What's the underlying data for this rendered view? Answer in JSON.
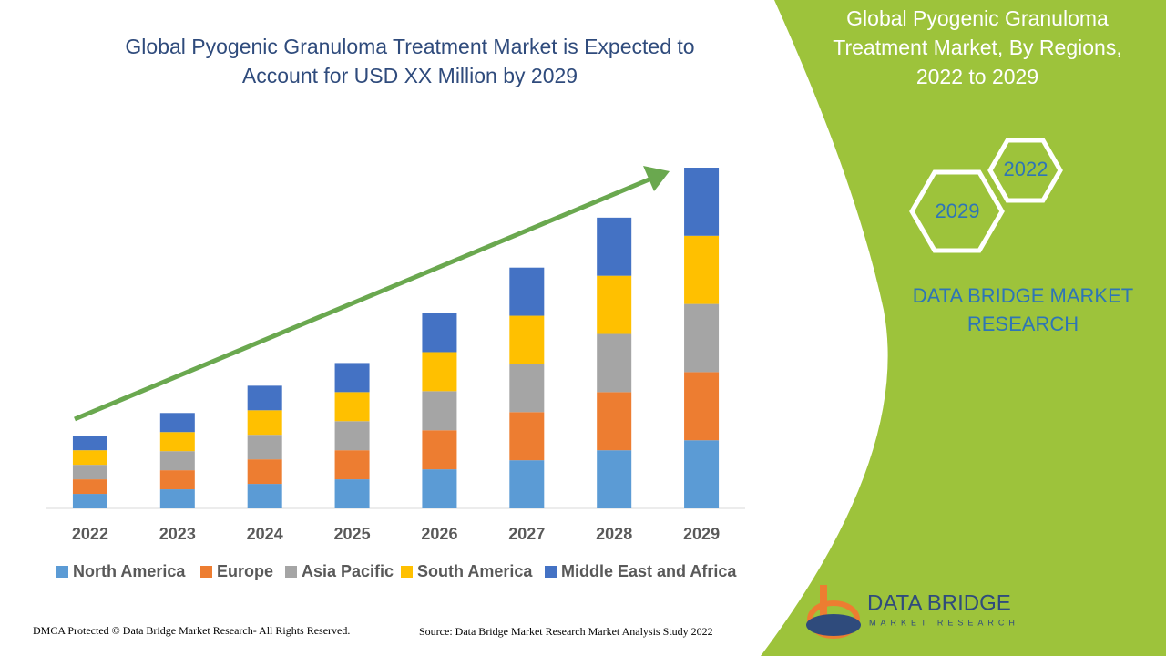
{
  "chart_data": {
    "type": "bar",
    "stacked": true,
    "title": [
      "Global Pyogenic Granuloma Treatment Market is Expected to",
      "Account for USD XX Million by 2029"
    ],
    "categories": [
      "2022",
      "2023",
      "2024",
      "2025",
      "2026",
      "2027",
      "2028",
      "2029"
    ],
    "series": [
      {
        "name": "North America",
        "color": "#5b9bd5",
        "values": [
          16,
          21,
          27,
          32,
          43,
          53,
          64,
          75
        ]
      },
      {
        "name": "Europe",
        "color": "#ed7d31",
        "values": [
          16,
          21,
          27,
          32,
          43,
          53,
          64,
          75
        ]
      },
      {
        "name": "Asia Pacific",
        "color": "#a5a5a5",
        "values": [
          16,
          21,
          27,
          32,
          43,
          53,
          64,
          75
        ]
      },
      {
        "name": "South America",
        "color": "#ffc000",
        "values": [
          16,
          21,
          27,
          32,
          43,
          53,
          64,
          75
        ]
      },
      {
        "name": "Middle East and Africa",
        "color": "#4472c4",
        "values": [
          16,
          21,
          27,
          32,
          43,
          53,
          64,
          75
        ]
      }
    ]
  },
  "panel": {
    "title": [
      "Global Pyogenic Granuloma",
      "Treatment Market, By Regions,",
      "2022 to 2029"
    ],
    "hexagons": [
      "2022",
      "2029"
    ],
    "brand": [
      "DATA BRIDGE MARKET",
      "RESEARCH"
    ]
  },
  "logo": {
    "name": "DATA BRIDGE",
    "tagline": "MARKET RESEARCH"
  },
  "footer": {
    "left": "DMCA Protected © Data Bridge Market Research- All Rights Reserved.",
    "right": "Source: Data Bridge Market Research Market Analysis Study 2022"
  }
}
